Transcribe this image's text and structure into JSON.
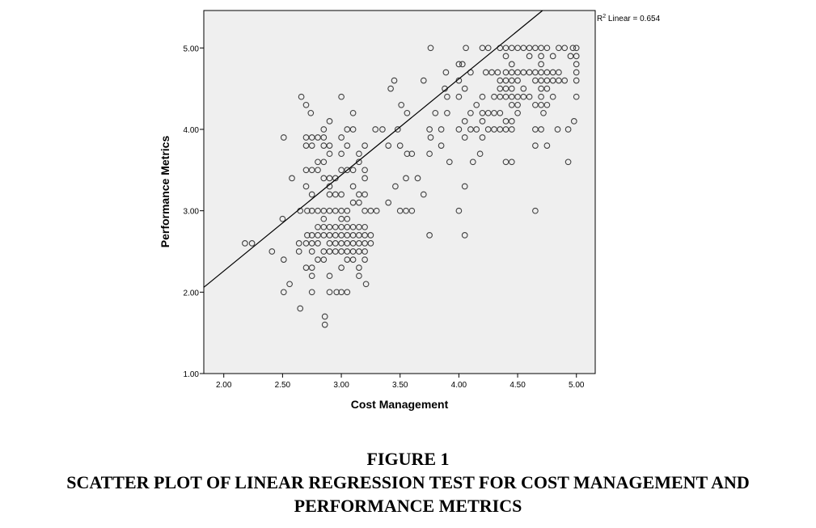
{
  "chart_data": {
    "type": "scatter",
    "xlabel": "Cost Management",
    "ylabel": "Performance Metrics",
    "xlim": [
      1.83,
      5.16
    ],
    "ylim": [
      1.0,
      5.46
    ],
    "xticks": [
      "2.00",
      "2.50",
      "3.00",
      "3.50",
      "4.00",
      "4.50",
      "5.00"
    ],
    "yticks": [
      "1.00",
      "2.00",
      "3.00",
      "4.00",
      "5.00"
    ],
    "annotation": {
      "prefix": "R",
      "sup": "2",
      "text": " Linear = 0.654"
    },
    "fit_line": {
      "intercept": -0.1,
      "slope": 1.18
    },
    "plot_background": "#efefef",
    "point_color": "#404040",
    "points": [
      [
        2.18,
        2.6
      ],
      [
        2.24,
        2.6
      ],
      [
        2.41,
        2.5
      ],
      [
        2.5,
        2.9
      ],
      [
        2.51,
        2.4
      ],
      [
        2.51,
        2.0
      ],
      [
        2.51,
        3.9
      ],
      [
        2.56,
        2.1
      ],
      [
        2.58,
        3.4
      ],
      [
        2.65,
        1.8
      ],
      [
        2.64,
        2.5
      ],
      [
        2.64,
        2.6
      ],
      [
        2.65,
        3.0
      ],
      [
        2.66,
        4.4
      ],
      [
        2.7,
        4.3
      ],
      [
        2.7,
        3.3
      ],
      [
        2.7,
        2.3
      ],
      [
        2.7,
        2.6
      ],
      [
        2.7,
        3.5
      ],
      [
        2.7,
        3.8
      ],
      [
        2.7,
        3.9
      ],
      [
        2.71,
        3.0
      ],
      [
        2.71,
        2.7
      ],
      [
        2.74,
        4.2
      ],
      [
        2.75,
        3.9
      ],
      [
        2.75,
        3.8
      ],
      [
        2.75,
        3.5
      ],
      [
        2.75,
        3.2
      ],
      [
        2.75,
        3.0
      ],
      [
        2.75,
        2.7
      ],
      [
        2.75,
        2.6
      ],
      [
        2.75,
        2.5
      ],
      [
        2.75,
        2.3
      ],
      [
        2.75,
        2.2
      ],
      [
        2.75,
        2.0
      ],
      [
        2.8,
        3.9
      ],
      [
        2.8,
        3.6
      ],
      [
        2.8,
        3.5
      ],
      [
        2.8,
        3.0
      ],
      [
        2.8,
        2.8
      ],
      [
        2.8,
        2.7
      ],
      [
        2.8,
        2.6
      ],
      [
        2.8,
        2.4
      ],
      [
        2.85,
        4.0
      ],
      [
        2.85,
        3.9
      ],
      [
        2.85,
        3.8
      ],
      [
        2.85,
        3.6
      ],
      [
        2.85,
        3.4
      ],
      [
        2.85,
        3.0
      ],
      [
        2.85,
        2.9
      ],
      [
        2.85,
        2.8
      ],
      [
        2.85,
        2.7
      ],
      [
        2.85,
        2.5
      ],
      [
        2.85,
        2.4
      ],
      [
        2.86,
        1.7
      ],
      [
        2.86,
        1.6
      ],
      [
        2.9,
        4.1
      ],
      [
        2.9,
        3.8
      ],
      [
        2.9,
        3.7
      ],
      [
        2.9,
        3.4
      ],
      [
        2.9,
        3.3
      ],
      [
        2.9,
        3.2
      ],
      [
        2.9,
        3.0
      ],
      [
        2.9,
        2.8
      ],
      [
        2.9,
        2.7
      ],
      [
        2.9,
        2.6
      ],
      [
        2.9,
        2.5
      ],
      [
        2.9,
        2.2
      ],
      [
        2.9,
        2.0
      ],
      [
        2.95,
        3.4
      ],
      [
        2.95,
        3.2
      ],
      [
        2.95,
        3.0
      ],
      [
        2.95,
        2.8
      ],
      [
        2.95,
        2.7
      ],
      [
        2.95,
        2.6
      ],
      [
        2.95,
        2.5
      ],
      [
        2.96,
        2.0
      ],
      [
        3.0,
        4.4
      ],
      [
        3.0,
        3.9
      ],
      [
        3.0,
        3.7
      ],
      [
        3.0,
        3.5
      ],
      [
        3.0,
        3.2
      ],
      [
        3.0,
        3.0
      ],
      [
        3.0,
        2.9
      ],
      [
        3.0,
        2.8
      ],
      [
        3.0,
        2.7
      ],
      [
        3.0,
        2.6
      ],
      [
        3.0,
        2.5
      ],
      [
        3.0,
        2.3
      ],
      [
        3.0,
        2.0
      ],
      [
        3.05,
        4.0
      ],
      [
        3.05,
        3.8
      ],
      [
        3.05,
        3.5
      ],
      [
        3.05,
        3.0
      ],
      [
        3.05,
        2.9
      ],
      [
        3.05,
        2.8
      ],
      [
        3.05,
        2.7
      ],
      [
        3.05,
        2.6
      ],
      [
        3.05,
        2.5
      ],
      [
        3.05,
        2.4
      ],
      [
        3.05,
        2.0
      ],
      [
        3.1,
        4.2
      ],
      [
        3.1,
        4.0
      ],
      [
        3.1,
        3.5
      ],
      [
        3.1,
        3.3
      ],
      [
        3.1,
        3.1
      ],
      [
        3.1,
        2.8
      ],
      [
        3.1,
        2.7
      ],
      [
        3.1,
        2.6
      ],
      [
        3.1,
        2.5
      ],
      [
        3.1,
        2.4
      ],
      [
        3.15,
        3.7
      ],
      [
        3.15,
        3.6
      ],
      [
        3.15,
        3.2
      ],
      [
        3.15,
        3.1
      ],
      [
        3.15,
        2.8
      ],
      [
        3.15,
        2.7
      ],
      [
        3.15,
        2.6
      ],
      [
        3.15,
        2.5
      ],
      [
        3.15,
        2.3
      ],
      [
        3.15,
        2.2
      ],
      [
        3.2,
        3.8
      ],
      [
        3.2,
        3.5
      ],
      [
        3.2,
        3.4
      ],
      [
        3.2,
        3.2
      ],
      [
        3.2,
        3.0
      ],
      [
        3.2,
        2.8
      ],
      [
        3.2,
        2.7
      ],
      [
        3.2,
        2.6
      ],
      [
        3.2,
        2.5
      ],
      [
        3.2,
        2.4
      ],
      [
        3.21,
        2.1
      ],
      [
        3.25,
        3.0
      ],
      [
        3.25,
        2.7
      ],
      [
        3.25,
        2.6
      ],
      [
        3.29,
        4.0
      ],
      [
        3.3,
        3.0
      ],
      [
        3.35,
        4.0
      ],
      [
        3.4,
        3.1
      ],
      [
        3.4,
        3.8
      ],
      [
        3.42,
        4.5
      ],
      [
        3.45,
        4.6
      ],
      [
        3.46,
        3.3
      ],
      [
        3.48,
        4.0
      ],
      [
        3.5,
        3.0
      ],
      [
        3.5,
        3.8
      ],
      [
        3.51,
        4.3
      ],
      [
        3.55,
        3.4
      ],
      [
        3.56,
        4.2
      ],
      [
        3.56,
        3.7
      ],
      [
        3.55,
        3.0
      ],
      [
        3.6,
        3.7
      ],
      [
        3.6,
        3.0
      ],
      [
        3.65,
        3.4
      ],
      [
        3.7,
        3.2
      ],
      [
        3.7,
        4.6
      ],
      [
        3.75,
        4.0
      ],
      [
        3.75,
        3.7
      ],
      [
        3.75,
        2.7
      ],
      [
        3.76,
        3.9
      ],
      [
        3.76,
        5.0
      ],
      [
        3.8,
        4.2
      ],
      [
        3.85,
        3.8
      ],
      [
        3.85,
        4.0
      ],
      [
        3.88,
        4.5
      ],
      [
        3.89,
        4.7
      ],
      [
        3.9,
        4.4
      ],
      [
        3.9,
        4.2
      ],
      [
        3.92,
        3.6
      ],
      [
        4.0,
        4.8
      ],
      [
        4.0,
        4.6
      ],
      [
        4.0,
        4.4
      ],
      [
        4.0,
        4.0
      ],
      [
        4.0,
        3.0
      ],
      [
        4.03,
        4.8
      ],
      [
        4.05,
        4.5
      ],
      [
        4.05,
        4.1
      ],
      [
        4.05,
        3.9
      ],
      [
        4.05,
        3.3
      ],
      [
        4.05,
        2.7
      ],
      [
        4.06,
        5.0
      ],
      [
        4.1,
        4.7
      ],
      [
        4.1,
        4.2
      ],
      [
        4.1,
        4.0
      ],
      [
        4.12,
        3.6
      ],
      [
        4.15,
        4.3
      ],
      [
        4.15,
        4.0
      ],
      [
        4.18,
        3.7
      ],
      [
        4.2,
        4.4
      ],
      [
        4.2,
        4.2
      ],
      [
        4.2,
        4.1
      ],
      [
        4.2,
        3.9
      ],
      [
        4.2,
        5.0
      ],
      [
        4.23,
        4.7
      ],
      [
        4.25,
        4.2
      ],
      [
        4.25,
        4.0
      ],
      [
        4.25,
        5.0
      ],
      [
        4.28,
        4.7
      ],
      [
        4.3,
        4.4
      ],
      [
        4.3,
        4.2
      ],
      [
        4.3,
        4.0
      ],
      [
        4.33,
        4.7
      ],
      [
        4.35,
        5.0
      ],
      [
        4.35,
        4.6
      ],
      [
        4.35,
        4.5
      ],
      [
        4.35,
        4.4
      ],
      [
        4.35,
        4.2
      ],
      [
        4.35,
        4.0
      ],
      [
        4.4,
        5.0
      ],
      [
        4.4,
        4.9
      ],
      [
        4.4,
        4.7
      ],
      [
        4.4,
        4.6
      ],
      [
        4.4,
        4.5
      ],
      [
        4.4,
        4.4
      ],
      [
        4.4,
        4.1
      ],
      [
        4.4,
        4.0
      ],
      [
        4.4,
        3.6
      ],
      [
        4.45,
        5.0
      ],
      [
        4.45,
        4.8
      ],
      [
        4.45,
        4.7
      ],
      [
        4.45,
        4.6
      ],
      [
        4.45,
        4.5
      ],
      [
        4.45,
        4.4
      ],
      [
        4.45,
        4.3
      ],
      [
        4.45,
        4.1
      ],
      [
        4.45,
        4.0
      ],
      [
        4.45,
        3.6
      ],
      [
        4.5,
        5.0
      ],
      [
        4.5,
        4.7
      ],
      [
        4.5,
        4.6
      ],
      [
        4.5,
        4.4
      ],
      [
        4.5,
        4.3
      ],
      [
        4.5,
        4.2
      ],
      [
        4.55,
        5.0
      ],
      [
        4.55,
        4.7
      ],
      [
        4.55,
        4.5
      ],
      [
        4.55,
        4.4
      ],
      [
        4.6,
        5.0
      ],
      [
        4.6,
        4.9
      ],
      [
        4.6,
        4.7
      ],
      [
        4.6,
        4.4
      ],
      [
        4.65,
        5.0
      ],
      [
        4.65,
        4.7
      ],
      [
        4.65,
        4.6
      ],
      [
        4.65,
        4.3
      ],
      [
        4.65,
        4.0
      ],
      [
        4.65,
        3.8
      ],
      [
        4.65,
        3.0
      ],
      [
        4.7,
        5.0
      ],
      [
        4.7,
        4.9
      ],
      [
        4.7,
        4.8
      ],
      [
        4.7,
        4.7
      ],
      [
        4.7,
        4.6
      ],
      [
        4.7,
        4.5
      ],
      [
        4.7,
        4.4
      ],
      [
        4.7,
        4.3
      ],
      [
        4.7,
        4.0
      ],
      [
        4.72,
        4.2
      ],
      [
        4.75,
        5.0
      ],
      [
        4.75,
        4.7
      ],
      [
        4.75,
        4.6
      ],
      [
        4.75,
        4.5
      ],
      [
        4.75,
        4.3
      ],
      [
        4.75,
        3.8
      ],
      [
        4.8,
        4.9
      ],
      [
        4.8,
        4.7
      ],
      [
        4.8,
        4.6
      ],
      [
        4.8,
        4.4
      ],
      [
        4.84,
        4.0
      ],
      [
        4.85,
        5.0
      ],
      [
        4.85,
        4.7
      ],
      [
        4.85,
        4.6
      ],
      [
        4.9,
        5.0
      ],
      [
        4.93,
        3.6
      ],
      [
        4.93,
        4.0
      ],
      [
        4.95,
        4.9
      ],
      [
        4.98,
        4.1
      ],
      [
        5.0,
        5.0
      ],
      [
        5.0,
        4.9
      ],
      [
        5.0,
        4.8
      ],
      [
        5.0,
        4.7
      ],
      [
        5.0,
        4.6
      ],
      [
        5.0,
        4.4
      ],
      [
        4.97,
        5.0
      ],
      [
        4.9,
        4.6
      ]
    ]
  },
  "caption": {
    "line1": "FIGURE 1",
    "line2": "SCATTER PLOT OF LINEAR REGRESSION TEST FOR COST MANAGEMENT AND",
    "line3": "PERFORMANCE METRICS"
  }
}
